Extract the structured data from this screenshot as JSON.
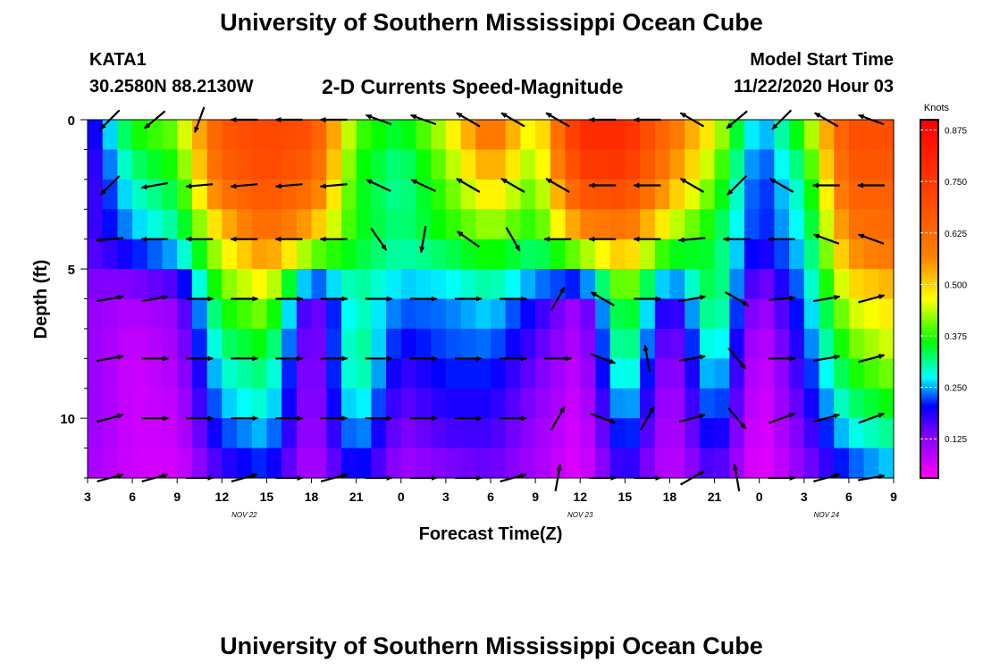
{
  "header": {
    "title": "University of Southern Mississippi Ocean Cube",
    "station": "KATA1",
    "coords": "30.2580N 88.2130W",
    "subtitle": "2-D Currents Speed-Magnitude",
    "model_start_label": "Model Start Time",
    "model_start_value": "11/22/2020 Hour 03"
  },
  "footer": {
    "title": "University of Southern Mississippi Ocean Cube"
  },
  "chart_data": {
    "type": "heatmap",
    "xlabel": "Forecast Time(Z)",
    "ylabel": "Depth (ft)",
    "x_range_hours": [
      3,
      57
    ],
    "x_ticks": [
      {
        "h": 3,
        "label": "3"
      },
      {
        "h": 6,
        "label": "6"
      },
      {
        "h": 9,
        "label": "9"
      },
      {
        "h": 12,
        "label": "12"
      },
      {
        "h": 15,
        "label": "15"
      },
      {
        "h": 18,
        "label": "18"
      },
      {
        "h": 21,
        "label": "21"
      },
      {
        "h": 24,
        "label": "0"
      },
      {
        "h": 27,
        "label": "3"
      },
      {
        "h": 30,
        "label": "6"
      },
      {
        "h": 33,
        "label": "9"
      },
      {
        "h": 36,
        "label": "12"
      },
      {
        "h": 39,
        "label": "15"
      },
      {
        "h": 42,
        "label": "18"
      },
      {
        "h": 45,
        "label": "21"
      },
      {
        "h": 48,
        "label": "0"
      },
      {
        "h": 51,
        "label": "3"
      },
      {
        "h": 54,
        "label": "6"
      },
      {
        "h": 57,
        "label": "9"
      }
    ],
    "date_labels": [
      {
        "h": 13.5,
        "label": "NOV  22"
      },
      {
        "h": 36,
        "label": "NOV  23"
      },
      {
        "h": 52.5,
        "label": "NOV  24"
      }
    ],
    "y_range": [
      0,
      12
    ],
    "y_ticks": [
      0,
      5,
      10
    ],
    "y_tick_labels": [
      "0",
      "5",
      "10"
    ],
    "colorbar": {
      "title": "Knots",
      "ticks": [
        0.125,
        0.25,
        0.375,
        0.5,
        0.625,
        0.75,
        0.875
      ],
      "tick_labels": [
        "0.125",
        "0.250",
        "0.375",
        "0.500",
        "0.625",
        "0.750",
        "0.875"
      ],
      "range": [
        0.03,
        0.9
      ]
    },
    "times": [
      3,
      6,
      9,
      12,
      15,
      18,
      21,
      24,
      27,
      30,
      33,
      36,
      39,
      42,
      45,
      48,
      51,
      54,
      57
    ],
    "depths": [
      0,
      2,
      4,
      6,
      8,
      10,
      12
    ],
    "speed": [
      [
        0.17,
        0.38,
        0.42,
        0.68,
        0.72,
        0.7,
        0.4,
        0.35,
        0.46,
        0.65,
        0.45,
        0.8,
        0.8,
        0.62,
        0.48,
        0.24,
        0.4,
        0.7,
        0.7
      ],
      [
        0.15,
        0.3,
        0.36,
        0.64,
        0.7,
        0.64,
        0.36,
        0.3,
        0.4,
        0.52,
        0.4,
        0.72,
        0.74,
        0.56,
        0.4,
        0.2,
        0.32,
        0.66,
        0.66
      ],
      [
        0.16,
        0.24,
        0.3,
        0.48,
        0.6,
        0.5,
        0.36,
        0.32,
        0.36,
        0.4,
        0.36,
        0.52,
        0.56,
        0.42,
        0.34,
        0.2,
        0.28,
        0.58,
        0.62
      ],
      [
        0.12,
        0.1,
        0.12,
        0.38,
        0.44,
        0.12,
        0.3,
        0.24,
        0.24,
        0.28,
        0.2,
        0.1,
        0.4,
        0.16,
        0.36,
        0.1,
        0.24,
        0.46,
        0.5
      ],
      [
        0.12,
        0.07,
        0.1,
        0.3,
        0.34,
        0.1,
        0.34,
        0.18,
        0.22,
        0.22,
        0.15,
        0.08,
        0.34,
        0.1,
        0.3,
        0.06,
        0.2,
        0.38,
        0.44
      ],
      [
        0.12,
        0.07,
        0.08,
        0.24,
        0.28,
        0.1,
        0.28,
        0.14,
        0.18,
        0.18,
        0.12,
        0.06,
        0.26,
        0.08,
        0.24,
        0.05,
        0.16,
        0.3,
        0.34
      ],
      [
        0.1,
        0.07,
        0.06,
        0.16,
        0.2,
        0.08,
        0.2,
        0.1,
        0.12,
        0.14,
        0.1,
        0.05,
        0.18,
        0.07,
        0.16,
        0.04,
        0.12,
        0.2,
        0.24
      ]
    ],
    "vector_depths": [
      0,
      2.2,
      4,
      6,
      8,
      10,
      12
    ],
    "vector_times": [
      4.5,
      7.5,
      10.5,
      13.5,
      16.5,
      19.5,
      22.5,
      25.5,
      28.5,
      31.5,
      34.5,
      37.5,
      40.5,
      43.5,
      46.5,
      49.5,
      52.5,
      55.5
    ],
    "direction_deg": [
      [
        225,
        230,
        200,
        270,
        270,
        270,
        290,
        290,
        300,
        300,
        300,
        270,
        270,
        300,
        230,
        225,
        300,
        290
      ],
      [
        225,
        260,
        265,
        265,
        265,
        265,
        295,
        295,
        300,
        300,
        300,
        270,
        270,
        300,
        225,
        300,
        270,
        270
      ],
      [
        265,
        270,
        270,
        270,
        270,
        270,
        145,
        190,
        305,
        150,
        270,
        270,
        270,
        265,
        270,
        270,
        290,
        290
      ],
      [
        80,
        80,
        90,
        90,
        90,
        90,
        90,
        90,
        90,
        90,
        30,
        300,
        90,
        80,
        120,
        85,
        80,
        75
      ],
      [
        80,
        90,
        90,
        90,
        90,
        90,
        90,
        90,
        90,
        90,
        90,
        110,
        350,
        80,
        140,
        90,
        80,
        75
      ],
      [
        75,
        90,
        90,
        90,
        90,
        90,
        90,
        90,
        90,
        90,
        30,
        110,
        30,
        75,
        140,
        70,
        75,
        70
      ],
      [
        75,
        75,
        90,
        75,
        90,
        75,
        90,
        90,
        90,
        75,
        10,
        90,
        90,
        60,
        350,
        90,
        75,
        80
      ]
    ]
  }
}
